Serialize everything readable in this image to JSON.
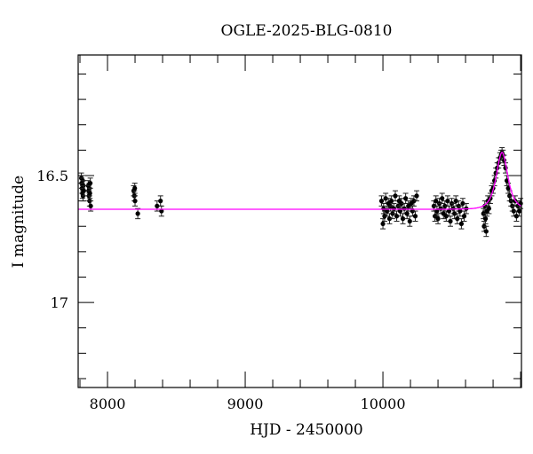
{
  "chart_data": {
    "type": "scatter",
    "title": "OGLE-2025-BLG-0810",
    "xlabel": "HJD - 2450000",
    "ylabel": "I magnitude",
    "xlim": [
      7787,
      11006
    ],
    "ylim": [
      17.335,
      16.025
    ],
    "y_inverted": true,
    "x_ticks": [
      8000,
      9000,
      10000
    ],
    "x_tick_labels": [
      "8000",
      "9000",
      "10000"
    ],
    "y_ticks": [
      16.5,
      17
    ],
    "y_tick_labels": [
      "16.5",
      "17"
    ],
    "grid": false,
    "colors": {
      "points": "#000000",
      "model": "#ff00ff"
    },
    "model": {
      "baseline_mag": 16.633,
      "t0": 10865,
      "u0": 1.2,
      "tE": 45
    },
    "points": [
      [
        7810,
        16.51,
        0.02
      ],
      [
        7812,
        16.53,
        0.02
      ],
      [
        7815,
        16.55,
        0.02
      ],
      [
        7818,
        16.57,
        0.02
      ],
      [
        7820,
        16.52,
        0.02
      ],
      [
        7822,
        16.58,
        0.02
      ],
      [
        7825,
        16.54,
        0.02
      ],
      [
        7828,
        16.56,
        0.02
      ],
      [
        7860,
        16.54,
        0.02
      ],
      [
        7863,
        16.56,
        0.02
      ],
      [
        7866,
        16.58,
        0.02
      ],
      [
        7868,
        16.55,
        0.02
      ],
      [
        7870,
        16.6,
        0.02
      ],
      [
        7872,
        16.57,
        0.02
      ],
      [
        7875,
        16.53,
        0.02
      ],
      [
        7878,
        16.62,
        0.02
      ],
      [
        8190,
        16.56,
        0.02
      ],
      [
        8195,
        16.58,
        0.02
      ],
      [
        8198,
        16.55,
        0.02
      ],
      [
        8200,
        16.6,
        0.02
      ],
      [
        8220,
        16.65,
        0.02
      ],
      [
        8360,
        16.62,
        0.02
      ],
      [
        8385,
        16.6,
        0.02
      ],
      [
        8392,
        16.64,
        0.02
      ],
      [
        9990,
        16.6,
        0.02
      ],
      [
        10000,
        16.69,
        0.02
      ],
      [
        10005,
        16.63,
        0.02
      ],
      [
        10012,
        16.66,
        0.02
      ],
      [
        10020,
        16.59,
        0.02
      ],
      [
        10030,
        16.64,
        0.02
      ],
      [
        10040,
        16.61,
        0.02
      ],
      [
        10048,
        16.67,
        0.02
      ],
      [
        10055,
        16.62,
        0.02
      ],
      [
        10062,
        16.6,
        0.02
      ],
      [
        10070,
        16.65,
        0.02
      ],
      [
        10080,
        16.63,
        0.02
      ],
      [
        10090,
        16.58,
        0.02
      ],
      [
        10100,
        16.66,
        0.02
      ],
      [
        10110,
        16.62,
        0.02
      ],
      [
        10118,
        16.6,
        0.02
      ],
      [
        10125,
        16.64,
        0.02
      ],
      [
        10135,
        16.61,
        0.02
      ],
      [
        10145,
        16.67,
        0.02
      ],
      [
        10155,
        16.63,
        0.02
      ],
      [
        10165,
        16.59,
        0.02
      ],
      [
        10175,
        16.65,
        0.02
      ],
      [
        10185,
        16.62,
        0.02
      ],
      [
        10195,
        16.68,
        0.02
      ],
      [
        10205,
        16.61,
        0.02
      ],
      [
        10215,
        16.64,
        0.02
      ],
      [
        10225,
        16.6,
        0.02
      ],
      [
        10235,
        16.66,
        0.02
      ],
      [
        10245,
        16.58,
        0.02
      ],
      [
        10370,
        16.62,
        0.02
      ],
      [
        10378,
        16.66,
        0.02
      ],
      [
        10385,
        16.6,
        0.02
      ],
      [
        10392,
        16.64,
        0.02
      ],
      [
        10400,
        16.67,
        0.02
      ],
      [
        10410,
        16.61,
        0.02
      ],
      [
        10420,
        16.63,
        0.02
      ],
      [
        10430,
        16.59,
        0.02
      ],
      [
        10440,
        16.65,
        0.02
      ],
      [
        10450,
        16.62,
        0.02
      ],
      [
        10460,
        16.66,
        0.02
      ],
      [
        10470,
        16.6,
        0.02
      ],
      [
        10480,
        16.64,
        0.02
      ],
      [
        10490,
        16.68,
        0.02
      ],
      [
        10500,
        16.61,
        0.02
      ],
      [
        10510,
        16.63,
        0.02
      ],
      [
        10520,
        16.65,
        0.02
      ],
      [
        10530,
        16.6,
        0.02
      ],
      [
        10540,
        16.67,
        0.02
      ],
      [
        10550,
        16.62,
        0.02
      ],
      [
        10560,
        16.64,
        0.02
      ],
      [
        10570,
        16.69,
        0.02
      ],
      [
        10580,
        16.61,
        0.02
      ],
      [
        10590,
        16.66,
        0.02
      ],
      [
        10605,
        16.63,
        0.02
      ],
      [
        10730,
        16.65,
        0.02
      ],
      [
        10735,
        16.7,
        0.02
      ],
      [
        10740,
        16.62,
        0.02
      ],
      [
        10745,
        16.67,
        0.02
      ],
      [
        10750,
        16.72,
        0.02
      ],
      [
        10755,
        16.64,
        0.02
      ],
      [
        10762,
        16.6,
        0.02
      ],
      [
        10770,
        16.63,
        0.02
      ],
      [
        10780,
        16.59,
        0.02
      ],
      [
        10790,
        16.56,
        0.02
      ],
      [
        10800,
        16.55,
        0.02
      ],
      [
        10810,
        16.52,
        0.02
      ],
      [
        10820,
        16.49,
        0.02
      ],
      [
        10830,
        16.47,
        0.02
      ],
      [
        10840,
        16.45,
        0.02
      ],
      [
        10850,
        16.43,
        0.02
      ],
      [
        10858,
        16.42,
        0.02
      ],
      [
        10865,
        16.41,
        0.02
      ],
      [
        10872,
        16.42,
        0.02
      ],
      [
        10880,
        16.44,
        0.02
      ],
      [
        10890,
        16.47,
        0.02
      ],
      [
        10900,
        16.52,
        0.02
      ],
      [
        10910,
        16.55,
        0.02
      ],
      [
        10920,
        16.58,
        0.02
      ],
      [
        10930,
        16.6,
        0.02
      ],
      [
        10940,
        16.62,
        0.02
      ],
      [
        10950,
        16.64,
        0.02
      ],
      [
        10960,
        16.6,
        0.02
      ],
      [
        10970,
        16.66,
        0.02
      ],
      [
        10980,
        16.62,
        0.02
      ],
      [
        10990,
        16.64,
        0.02
      ],
      [
        11000,
        16.61,
        0.02
      ]
    ]
  }
}
